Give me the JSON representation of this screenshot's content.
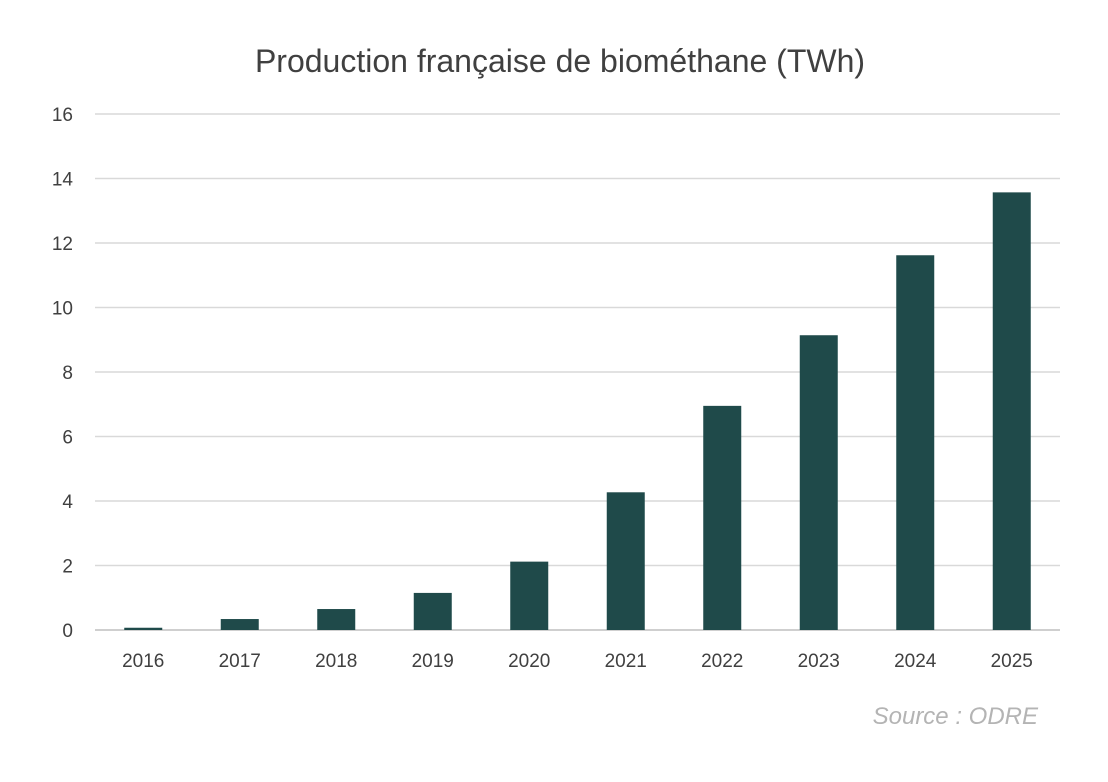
{
  "chart_data": {
    "type": "bar",
    "title": "Production française de biométhane (TWh)",
    "xlabel": "",
    "ylabel": "",
    "categories": [
      "2016",
      "2017",
      "2018",
      "2019",
      "2020",
      "2021",
      "2022",
      "2023",
      "2024",
      "2025"
    ],
    "values": [
      0.07,
      0.34,
      0.65,
      1.15,
      2.12,
      4.27,
      6.95,
      9.14,
      11.62,
      13.57
    ],
    "ylim": [
      0,
      16
    ],
    "yticks": [
      0,
      2,
      4,
      6,
      8,
      10,
      12,
      14,
      16
    ],
    "grid": true,
    "legend": "none",
    "bar_color": "#1f4a4a",
    "grid_color": "#d9d9d9"
  },
  "source": "Source : ODRE"
}
